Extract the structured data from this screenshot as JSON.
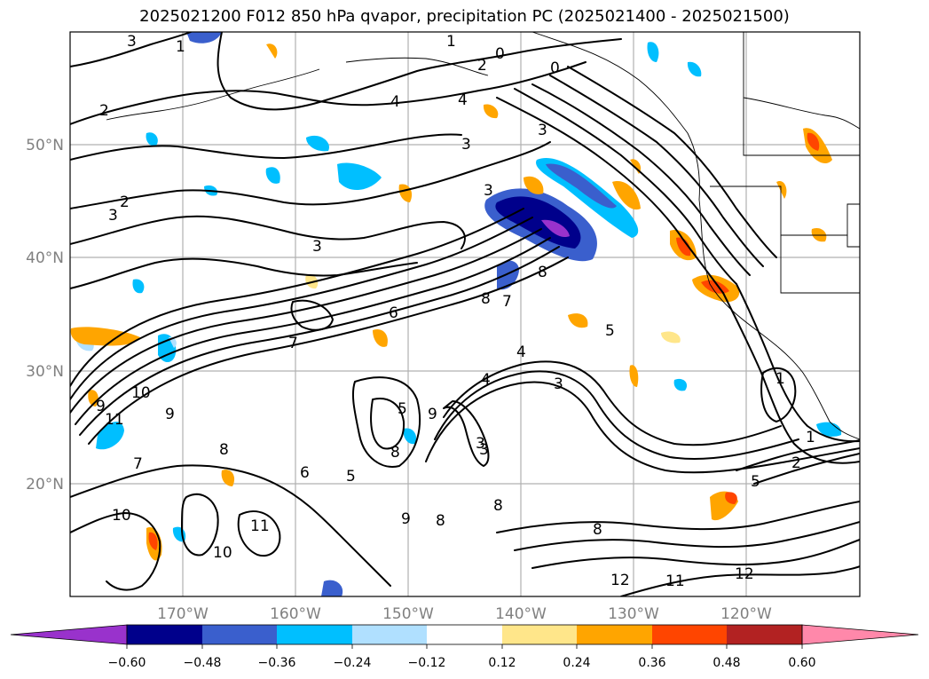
{
  "title": "2025021200 F012 850 hPa qvapor, precipitation PC (2025021400 - 2025021500)",
  "map": {
    "lon_range": [
      -180,
      -110
    ],
    "lat_range": [
      10,
      60
    ],
    "lat_labels": [
      "20°N",
      "30°N",
      "40°N",
      "50°N"
    ],
    "lat_values": [
      20,
      30,
      40,
      50
    ],
    "lon_labels": [
      "170°W",
      "160°W",
      "150°W",
      "140°W",
      "130°W",
      "120°W"
    ],
    "lon_values": [
      -170,
      -160,
      -150,
      -140,
      -130,
      -120
    ],
    "grid": true,
    "contour_labels": [
      "1",
      "2",
      "3",
      "0",
      "1",
      "4",
      "4",
      "3",
      "3",
      "2",
      "2",
      "3",
      "3",
      "0",
      "3",
      "8",
      "8",
      "7",
      "6",
      "7",
      "4",
      "3",
      "5",
      "4",
      "3",
      "1",
      "2",
      "5",
      "1",
      "10",
      "9",
      "11",
      "9",
      "8",
      "7",
      "6",
      "5",
      "9",
      "8",
      "8",
      "5",
      "3",
      "11",
      "10",
      "10",
      "9",
      "8",
      "8",
      "12",
      "11",
      "12"
    ]
  },
  "colorbar": {
    "ticks": [
      "−0.60",
      "−0.48",
      "−0.36",
      "−0.24",
      "−0.12",
      "0.12",
      "0.24",
      "0.36",
      "0.48",
      "0.60"
    ],
    "colors": {
      "below": "#9932cc",
      "bins": [
        "#00008b",
        "#3a5fcd",
        "#00bfff",
        "#b0e0ff",
        "#ffffff",
        "#ffe68a",
        "#ffa500",
        "#ff4500",
        "#b22222"
      ],
      "above": "#ff88aa"
    }
  }
}
